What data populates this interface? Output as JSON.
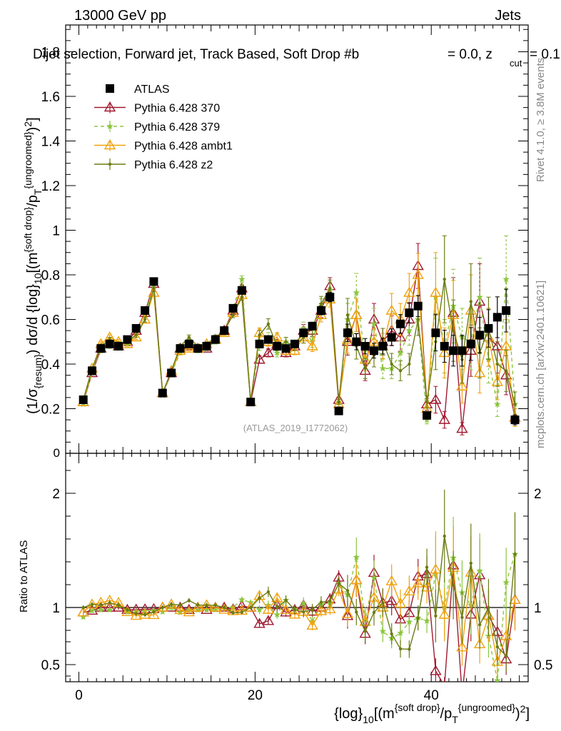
{
  "header": {
    "energy_label": "13000 GeV pp",
    "process_label": "Jets",
    "title_a": "Dijet selection, Forward jet, Track Based, Soft Drop #b",
    "title_b": "= 0.0, z",
    "title_sub": "cut",
    "title_c": "= 0.1",
    "watermark": "(ATLAS_2019_I1772062)"
  },
  "side": {
    "rivet": "Rivet 4.1.0, ≥ 3.8M events",
    "mcplots": "mcplots.cern.ch [arXiv:2401.10621]"
  },
  "axes": {
    "ylabel_main": "(1/σ{resum}) dσ/d {log}10[(m{soft drop}/pT{ungroomed})²]",
    "ylabel_ratio": "Ratio to ATLAS",
    "xlabel": "{log}10[(m{soft drop}/pT{ungroomed})²]"
  },
  "legend": [
    {
      "label": "ATLAS",
      "color": "#000000"
    },
    {
      "label": "Pythia 6.428 370",
      "color": "#a01a30"
    },
    {
      "label": "Pythia 6.428 379",
      "color": "#8cc63f"
    },
    {
      "label": "Pythia 6.428 ambt1",
      "color": "#f0a20f"
    },
    {
      "label": "Pythia 6.428 z2",
      "color": "#6b7c14"
    }
  ],
  "chart_data": {
    "type": "line",
    "title": "Dijet selection, Forward jet, Track Based, Soft Drop #b = 0.0, zcut = 0.1",
    "xlim": [
      -1.5,
      51
    ],
    "ylim": [
      0,
      1.92
    ],
    "ratio_ylim": [
      0.35,
      2.35
    ],
    "x_ticks": [
      0,
      20,
      40
    ],
    "y_ticks": [
      0.2,
      0.4,
      0.6,
      0.8,
      1,
      1.2,
      1.4,
      1.6,
      1.8
    ],
    "y_tick_labels": [
      "0.2",
      "0.4",
      "0.6",
      "0.8",
      "1",
      "1.2",
      "1.4",
      "1.6",
      "1.8"
    ],
    "zero_tick_label": "0",
    "ratio_ticks": [
      0.5,
      1,
      2
    ],
    "ratio_tick_labels": [
      "0.5",
      "1",
      "2"
    ],
    "x": [
      0.5,
      1.5,
      2.5,
      3.5,
      4.5,
      5.5,
      6.5,
      7.5,
      8.5,
      9.5,
      10.5,
      11.5,
      12.5,
      13.5,
      14.5,
      15.5,
      16.5,
      17.5,
      18.5,
      19.5,
      20.5,
      21.5,
      22.5,
      23.5,
      24.5,
      25.5,
      26.5,
      27.5,
      28.5,
      29.5,
      30.5,
      31.5,
      32.5,
      33.5,
      34.5,
      35.5,
      36.5,
      37.5,
      38.5,
      39.5,
      40.5,
      41.5,
      42.5,
      43.5,
      44.5,
      45.5,
      46.5,
      47.5,
      48.5,
      49.5
    ],
    "series": [
      {
        "name": "ATLAS",
        "values": [
          0.24,
          0.37,
          0.47,
          0.49,
          0.48,
          0.51,
          0.56,
          0.64,
          0.77,
          0.27,
          0.36,
          0.47,
          0.49,
          0.47,
          0.48,
          0.51,
          0.55,
          0.65,
          0.73,
          0.23,
          0.49,
          0.51,
          0.48,
          0.47,
          0.49,
          0.54,
          0.57,
          0.64,
          0.7,
          0.19,
          0.54,
          0.5,
          0.48,
          0.46,
          0.48,
          0.52,
          0.58,
          0.63,
          0.66,
          0.17,
          0.54,
          0.48,
          0.46,
          0.46,
          0.49,
          0.53,
          0.56,
          0.61,
          0.64,
          0.15
        ]
      },
      {
        "name": "Pythia 6.428 370",
        "values": [
          0.23,
          0.36,
          0.47,
          0.49,
          0.48,
          0.5,
          0.55,
          0.63,
          0.76,
          0.27,
          0.36,
          0.47,
          0.48,
          0.47,
          0.47,
          0.51,
          0.55,
          0.64,
          0.74,
          0.23,
          0.42,
          0.45,
          0.49,
          0.45,
          0.48,
          0.55,
          0.55,
          0.64,
          0.75,
          0.24,
          0.5,
          0.62,
          0.37,
          0.6,
          0.5,
          0.55,
          0.52,
          0.6,
          0.84,
          0.22,
          0.24,
          0.15,
          0.63,
          0.11,
          0.46,
          0.68,
          0.52,
          0.48,
          0.35,
          0.16
        ]
      },
      {
        "name": "Pythia 6.428 379",
        "values": [
          0.22,
          0.36,
          0.46,
          0.48,
          0.49,
          0.49,
          0.54,
          0.62,
          0.75,
          0.26,
          0.36,
          0.45,
          0.48,
          0.46,
          0.47,
          0.5,
          0.55,
          0.65,
          0.78,
          0.24,
          0.48,
          0.52,
          0.45,
          0.5,
          0.48,
          0.56,
          0.5,
          0.66,
          0.73,
          0.23,
          0.6,
          0.72,
          0.43,
          0.58,
          0.38,
          0.38,
          0.45,
          0.55,
          0.6,
          0.15,
          0.7,
          0.48,
          0.66,
          0.52,
          0.5,
          0.7,
          0.42,
          0.22,
          0.78,
          0.22
        ]
      },
      {
        "name": "Pythia 6.428 ambt1",
        "values": [
          0.23,
          0.38,
          0.49,
          0.52,
          0.5,
          0.49,
          0.52,
          0.6,
          0.72,
          0.27,
          0.37,
          0.46,
          0.47,
          0.47,
          0.49,
          0.51,
          0.54,
          0.63,
          0.71,
          0.23,
          0.54,
          0.5,
          0.52,
          0.46,
          0.46,
          0.52,
          0.48,
          0.62,
          0.69,
          0.22,
          0.51,
          0.62,
          0.42,
          0.5,
          0.48,
          0.64,
          0.6,
          0.72,
          0.8,
          0.2,
          0.72,
          0.45,
          0.62,
          0.3,
          0.64,
          0.36,
          0.52,
          0.32,
          0.48,
          0.16
        ]
      },
      {
        "name": "Pythia 6.428 z2",
        "values": [
          0.24,
          0.38,
          0.48,
          0.51,
          0.49,
          0.5,
          0.53,
          0.6,
          0.74,
          0.27,
          0.37,
          0.48,
          0.52,
          0.48,
          0.49,
          0.52,
          0.55,
          0.62,
          0.7,
          0.23,
          0.53,
          0.58,
          0.48,
          0.5,
          0.48,
          0.52,
          0.56,
          0.67,
          0.74,
          0.23,
          0.62,
          0.48,
          0.38,
          0.44,
          0.5,
          0.4,
          0.37,
          0.4,
          0.6,
          0.23,
          0.5,
          0.78,
          0.55,
          0.42,
          0.68,
          0.45,
          0.56,
          0.4,
          0.37,
          0.22
        ]
      }
    ],
    "errors_rel": [
      0.02,
      0.02,
      0.02,
      0.02,
      0.02,
      0.02,
      0.02,
      0.02,
      0.02,
      0.02,
      0.02,
      0.02,
      0.02,
      0.02,
      0.02,
      0.02,
      0.02,
      0.02,
      0.02,
      0.02,
      0.04,
      0.04,
      0.04,
      0.04,
      0.04,
      0.05,
      0.05,
      0.05,
      0.05,
      0.05,
      0.12,
      0.12,
      0.12,
      0.12,
      0.12,
      0.12,
      0.12,
      0.12,
      0.12,
      0.12,
      0.25,
      0.25,
      0.25,
      0.25,
      0.25,
      0.25,
      0.25,
      0.25,
      0.25,
      0.25
    ]
  }
}
